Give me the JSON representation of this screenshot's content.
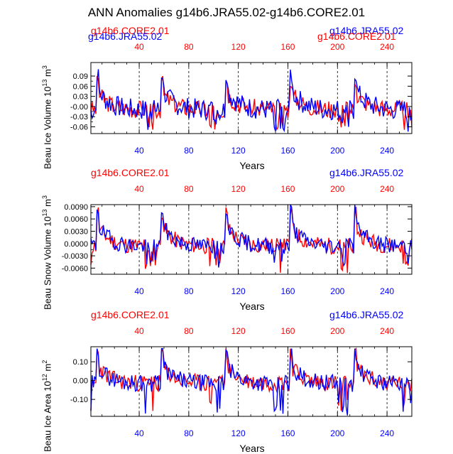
{
  "title": "ANN Anomalies g14b6.JRA55.02-g14b6.CORE2.01",
  "colors": {
    "core": "#ff0000",
    "jra": "#0000ff",
    "axis": "#000000"
  },
  "chart_data": [
    {
      "type": "line",
      "ylabel": "Beau Ice Volume 10",
      "ylabel_exp": "13",
      "ylabel_unit": " m",
      "ylabel_unit_exp": "3",
      "xlabel": "Years",
      "xlim": [
        1,
        260
      ],
      "ylim": [
        -0.08,
        0.13
      ],
      "yticks": [
        -0.06,
        -0.03,
        0.0,
        0.03,
        0.06,
        0.09
      ],
      "ytick_labels": [
        "-0.06",
        "-0.03",
        "-0.00",
        "0.03",
        "0.06",
        "0.09"
      ],
      "xticks_bottom": [
        40,
        80,
        120,
        160,
        200,
        240
      ],
      "xticks_top": [
        40,
        80,
        120,
        160,
        200,
        240
      ],
      "label_left": "g14b6.CORE2.01",
      "label_left_overlap": "g14b6.JRA55.02",
      "label_right": "g14b6.JRA55.02",
      "label_right_overlap": "g14b6.CORE2.01",
      "dashed_x": [
        40,
        80,
        120,
        160,
        200,
        240
      ],
      "series": [
        {
          "name": "g14b6.CORE2.01",
          "color": "#ff0000",
          "amp": 0.06,
          "seed": 3,
          "peak": 0.09,
          "trough": -0.07
        },
        {
          "name": "g14b6.JRA55.02",
          "color": "#0000ff",
          "amp": 0.07,
          "seed": 7,
          "peak": 0.11,
          "trough": -0.08
        }
      ]
    },
    {
      "type": "line",
      "ylabel": "Beau Snow Volume 10",
      "ylabel_exp": "13",
      "ylabel_unit": " m",
      "ylabel_unit_exp": "3",
      "xlabel": "Years",
      "xlim": [
        1,
        260
      ],
      "ylim": [
        -0.0075,
        0.0095
      ],
      "yticks": [
        -0.006,
        -0.003,
        0.0,
        0.003,
        0.006,
        0.009
      ],
      "ytick_labels": [
        "-0.0060",
        "-0.0030",
        "0.0000",
        "0.0030",
        "0.0060",
        "0.0090"
      ],
      "xticks_bottom": [
        40,
        80,
        120,
        160,
        200,
        240
      ],
      "xticks_top": [
        40,
        80,
        120,
        160,
        200,
        240
      ],
      "label_left": "g14b6.CORE2.01",
      "label_right": "g14b6.JRA55.02",
      "dashed_x": [
        40,
        80,
        120,
        160,
        200,
        240
      ],
      "series": [
        {
          "name": "g14b6.CORE2.01",
          "color": "#ff0000",
          "amp": 0.0045,
          "seed": 11,
          "peak": 0.0088,
          "trough": -0.0072
        },
        {
          "name": "g14b6.JRA55.02",
          "color": "#0000ff",
          "amp": 0.0045,
          "seed": 19,
          "peak": 0.0095,
          "trough": -0.006
        }
      ]
    },
    {
      "type": "line",
      "ylabel": "Beau Ice Area 10",
      "ylabel_exp": "12",
      "ylabel_unit": " m",
      "ylabel_unit_exp": "2",
      "xlabel": "Years",
      "xlim": [
        1,
        260
      ],
      "ylim": [
        -0.19,
        0.18
      ],
      "yticks": [
        -0.1,
        0.0,
        0.1
      ],
      "ytick_labels": [
        "-0.10",
        "0.00",
        "0.10"
      ],
      "xticks_bottom": [
        40,
        80,
        120,
        160,
        200,
        240
      ],
      "xticks_top": [
        40,
        80,
        120,
        160,
        200,
        240
      ],
      "label_left": "g14b6.CORE2.01",
      "label_right": "g14b6.JRA55.02",
      "dashed_x": [
        40,
        80,
        120,
        160,
        200,
        240
      ],
      "series": [
        {
          "name": "g14b6.CORE2.01",
          "color": "#ff0000",
          "amp": 0.1,
          "seed": 23,
          "peak": 0.17,
          "trough": -0.17
        },
        {
          "name": "g14b6.JRA55.02",
          "color": "#0000ff",
          "amp": 0.1,
          "seed": 29,
          "peak": 0.17,
          "trough": -0.19
        }
      ]
    }
  ]
}
